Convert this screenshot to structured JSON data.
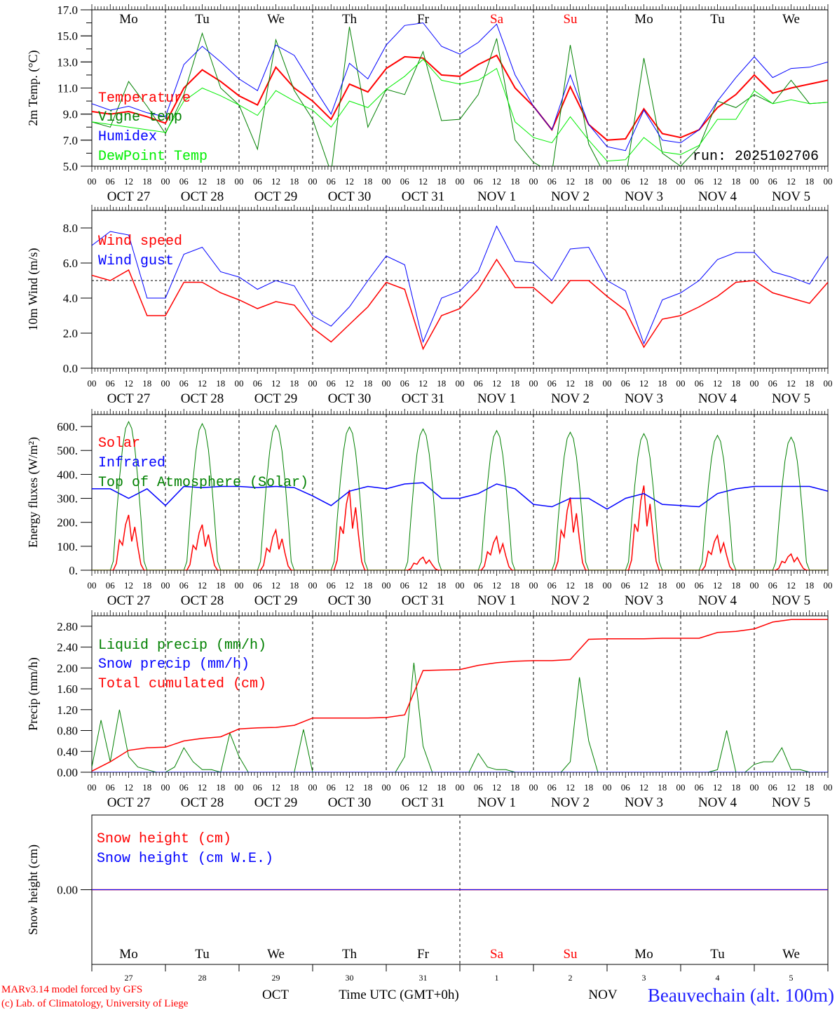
{
  "run_label": "run: 2025102706",
  "hour_labels": [
    "00",
    "06",
    "12",
    "18"
  ],
  "date_labels": [
    "OCT  27",
    "OCT  28",
    "OCT  29",
    "OCT  30",
    "OCT  31",
    "NOV   1",
    "NOV   2",
    "NOV   3",
    "NOV   4",
    "NOV   5"
  ],
  "day_names": [
    "Mo",
    "Tu",
    "We",
    "Th",
    "Fr",
    "Sa",
    "Su",
    "Mo",
    "Tu",
    "We"
  ],
  "day_name_colors": [
    "#000000",
    "#000000",
    "#000000",
    "#000000",
    "#000000",
    "#ff0000",
    "#ff0000",
    "#000000",
    "#000000",
    "#000000"
  ],
  "day_numbers": [
    "27",
    "28",
    "29",
    "30",
    "31",
    "1",
    "2",
    "3",
    "4",
    "5"
  ],
  "month_labels": {
    "oct": "OCT",
    "nov": "NOV"
  },
  "time_axis_label": "Time UTC (GMT+0h)",
  "credits": [
    "MARv3.14 model forced by GFS",
    "(c) Lab. of Climatology, University of Liege"
  ],
  "station": "Beauvechain (alt. 100m)",
  "chart_data": [
    {
      "type": "line",
      "ylabel": "2m Temp. (°C)",
      "ylim": [
        5,
        17
      ],
      "yticks": [
        "5.0",
        "7.0",
        "9.0",
        "11.0",
        "13.0",
        "15.0",
        "17.0"
      ],
      "ytick_values": [
        5,
        7,
        9,
        11,
        13,
        15,
        17
      ],
      "step_hours": 6,
      "series": [
        {
          "name": "Temperature",
          "color": "#ff0000",
          "width": 2,
          "values": [
            9.2,
            9.0,
            9.2,
            8.8,
            8.3,
            11.0,
            12.4,
            11.5,
            10.4,
            9.7,
            12.6,
            11.0,
            10.0,
            8.6,
            11.3,
            10.7,
            12.5,
            13.4,
            13.3,
            12.0,
            11.9,
            12.8,
            13.5,
            11.0,
            9.6,
            7.8,
            11.1,
            8.2,
            7.0,
            7.1,
            9.4,
            7.5,
            7.2,
            7.8,
            9.5,
            10.5,
            12.0,
            10.6,
            11.0,
            11.3,
            11.6
          ]
        },
        {
          "name": "Vigne temp",
          "color": "#008000",
          "width": 1,
          "values": [
            8.4,
            8.0,
            11.5,
            9.6,
            7.5,
            10.5,
            15.2,
            11.0,
            9.7,
            6.3,
            14.7,
            10.8,
            8.6,
            4.5,
            15.7,
            8.0,
            10.9,
            10.5,
            13.8,
            8.5,
            8.6,
            10.5,
            14.8,
            7.0,
            5.3,
            4.5,
            14.3,
            6.7,
            4.0,
            4.0,
            13.3,
            6.0,
            5.0,
            6.5,
            10.0,
            9.5,
            10.5,
            9.8,
            11.6,
            9.8,
            9.9
          ]
        },
        {
          "name": "Humidex",
          "color": "#0000ff",
          "width": 1,
          "values": [
            9.8,
            9.3,
            9.6,
            9.1,
            8.8,
            12.8,
            14.2,
            13.0,
            11.7,
            10.8,
            14.3,
            13.5,
            11.2,
            9.0,
            12.9,
            11.7,
            14.3,
            15.8,
            16.0,
            14.2,
            13.6,
            14.5,
            15.9,
            12.0,
            9.6,
            7.8,
            12.0,
            8.2,
            6.5,
            6.2,
            9.3,
            7.0,
            6.8,
            7.8,
            10.0,
            11.8,
            13.4,
            11.8,
            12.5,
            12.6,
            13.0
          ]
        },
        {
          "name": "DewPoint Temp",
          "color": "#00ee00",
          "width": 1,
          "values": [
            8.4,
            8.2,
            8.0,
            7.8,
            7.6,
            10.0,
            11.0,
            10.4,
            9.7,
            8.9,
            10.8,
            10.0,
            9.3,
            8.0,
            10.0,
            9.5,
            10.9,
            11.9,
            13.2,
            11.6,
            11.3,
            11.6,
            12.5,
            8.4,
            7.2,
            6.8,
            8.8,
            7.0,
            5.4,
            5.5,
            7.2,
            6.1,
            5.9,
            6.6,
            8.6,
            8.6,
            10.8,
            9.8,
            10.1,
            9.8,
            9.9
          ]
        }
      ]
    },
    {
      "type": "line",
      "ylabel": "10m Wind (m/s)",
      "ylim": [
        0,
        9
      ],
      "yticks": [
        "0.0",
        "2.0",
        "4.0",
        "6.0",
        "8.0"
      ],
      "ytick_values": [
        0,
        2,
        4,
        6,
        8
      ],
      "reference_line": 5,
      "step_hours": 6,
      "series": [
        {
          "name": "Wind speed",
          "color": "#ff0000",
          "width": 1.5,
          "values": [
            5.3,
            5.0,
            5.6,
            3.0,
            3.0,
            4.9,
            4.9,
            4.3,
            3.9,
            3.4,
            3.8,
            3.6,
            2.3,
            1.5,
            2.5,
            3.5,
            4.9,
            4.5,
            1.1,
            3.0,
            3.4,
            4.5,
            6.2,
            4.6,
            4.6,
            3.7,
            5.0,
            5.0,
            4.1,
            3.3,
            1.2,
            2.8,
            3.0,
            3.5,
            4.1,
            4.9,
            5.0,
            4.3,
            4.0,
            3.7,
            4.9
          ]
        },
        {
          "name": "Wind gust",
          "color": "#0000ff",
          "width": 1,
          "values": [
            7.0,
            7.8,
            7.6,
            4.0,
            4.0,
            6.5,
            6.9,
            5.5,
            5.2,
            4.5,
            5.0,
            4.7,
            3.0,
            2.4,
            3.5,
            5.0,
            6.4,
            5.9,
            1.5,
            4.0,
            4.4,
            5.5,
            8.1,
            6.1,
            6.0,
            5.0,
            6.8,
            6.9,
            5.0,
            4.4,
            1.4,
            3.9,
            4.3,
            5.0,
            6.2,
            6.6,
            6.6,
            5.5,
            5.2,
            4.8,
            6.4
          ]
        }
      ]
    },
    {
      "type": "line",
      "ylabel": "Energy fluxes (W/m²)",
      "ylim": [
        0,
        650
      ],
      "yticks": [
        "0.",
        "100.",
        "200.",
        "300.",
        "400.",
        "500.",
        "600."
      ],
      "ytick_values": [
        0,
        100,
        200,
        300,
        400,
        500,
        600
      ],
      "series": [
        {
          "name": "Solar",
          "color": "#ff0000",
          "width": 1.5,
          "daily_peaks": [
            255,
            210,
            185,
            370,
            60,
            155,
            335,
            390,
            160,
            75
          ]
        },
        {
          "name": "Infrared",
          "color": "#0000ff",
          "width": 1.5,
          "step_hours": 6,
          "values": [
            340,
            340,
            300,
            340,
            270,
            350,
            345,
            350,
            350,
            345,
            350,
            345,
            310,
            270,
            330,
            350,
            340,
            360,
            365,
            300,
            300,
            320,
            360,
            340,
            275,
            265,
            300,
            300,
            255,
            300,
            320,
            275,
            270,
            265,
            320,
            340,
            350,
            350,
            350,
            350,
            330
          ]
        },
        {
          "name": "Top of Atmosphere (Solar)",
          "color": "#008000",
          "width": 1,
          "daily_peaks": [
            620,
            612,
            605,
            598,
            590,
            583,
            576,
            570,
            563,
            555
          ]
        }
      ]
    },
    {
      "type": "line",
      "ylabel": "Precip (mm/h)",
      "ylim": [
        0,
        3.0
      ],
      "yticks": [
        "0.00",
        "0.40",
        "0.80",
        "1.20",
        "1.60",
        "2.00",
        "2.40",
        "2.80"
      ],
      "ytick_values": [
        0,
        0.4,
        0.8,
        1.2,
        1.6,
        2.0,
        2.4,
        2.8
      ],
      "series": [
        {
          "name": "Liquid precip (mm/h)",
          "color": "#008000",
          "width": 1,
          "step_hours": 3,
          "values": [
            0.1,
            1.0,
            0.2,
            1.2,
            0.3,
            0.1,
            0.05,
            0,
            0,
            0.1,
            0.47,
            0.2,
            0.05,
            0.05,
            0,
            0.75,
            0.3,
            0,
            0,
            0,
            0,
            0,
            0,
            0.82,
            0,
            0,
            0,
            0,
            0,
            0,
            0,
            0,
            0,
            0,
            0.3,
            2.1,
            0.5,
            0,
            0,
            0,
            0,
            0,
            0.36,
            0.1,
            0.05,
            0.05,
            0,
            0,
            0,
            0,
            0,
            0,
            0.2,
            1.82,
            0.6,
            0,
            0,
            0,
            0,
            0,
            0,
            0,
            0,
            0,
            0,
            0,
            0,
            0,
            0.05,
            0.8,
            0,
            0,
            0.15,
            0.2,
            0.2,
            0.47,
            0.05,
            0.05,
            0,
            0,
            0
          ]
        },
        {
          "name": "Snow precip (mm/h)",
          "color": "#0000ff",
          "width": 1,
          "step_hours": 6,
          "values": [
            0,
            0,
            0,
            0,
            0,
            0,
            0,
            0,
            0,
            0,
            0,
            0,
            0,
            0,
            0,
            0,
            0,
            0,
            0,
            0,
            0,
            0,
            0,
            0,
            0,
            0,
            0,
            0,
            0,
            0,
            0,
            0,
            0,
            0,
            0,
            0,
            0,
            0,
            0,
            0,
            0
          ]
        },
        {
          "name": "Total cumulated (cm)",
          "color": "#ff0000",
          "width": 1.5,
          "step_hours": 6,
          "values": [
            0.02,
            0.2,
            0.42,
            0.47,
            0.48,
            0.6,
            0.65,
            0.68,
            0.83,
            0.85,
            0.86,
            0.9,
            1.04,
            1.04,
            1.04,
            1.04,
            1.05,
            1.1,
            1.95,
            1.96,
            1.97,
            2.05,
            2.1,
            2.13,
            2.14,
            2.14,
            2.16,
            2.55,
            2.56,
            2.56,
            2.56,
            2.57,
            2.57,
            2.57,
            2.68,
            2.7,
            2.75,
            2.88,
            2.93,
            2.93,
            2.93
          ]
        }
      ]
    },
    {
      "type": "line",
      "ylabel": "Snow height (cm)",
      "ylim": [
        -1,
        1
      ],
      "yticks": [
        "0.00"
      ],
      "ytick_values": [
        0
      ],
      "step_hours": 24,
      "series": [
        {
          "name": "Snow height (cm)",
          "color": "#ff0000",
          "width": 1.5,
          "values": [
            0,
            0,
            0,
            0,
            0,
            0,
            0,
            0,
            0,
            0,
            0
          ]
        },
        {
          "name": "Snow height (cm W.E.)",
          "color": "#0000ff",
          "width": 1,
          "values": [
            0,
            0,
            0,
            0,
            0,
            0,
            0,
            0,
            0,
            0,
            0
          ]
        }
      ]
    }
  ]
}
